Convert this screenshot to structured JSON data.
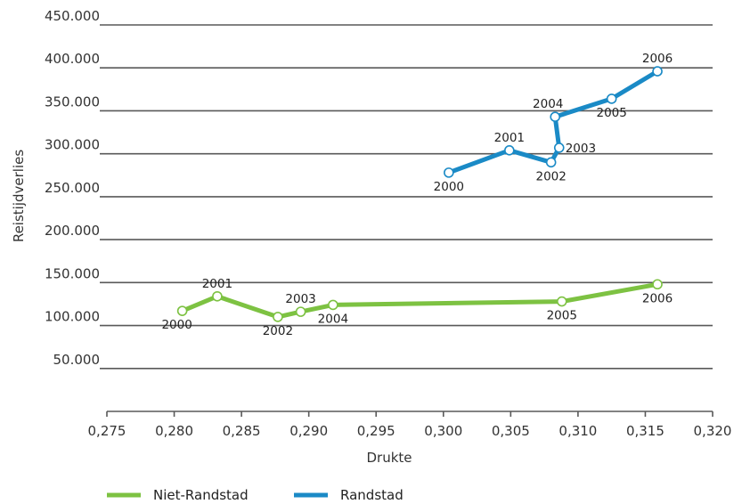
{
  "chart_data": {
    "type": "line",
    "xlabel": "Drukte",
    "ylabel": "Reistijdverlies",
    "xlim": [
      0.275,
      0.32
    ],
    "ylim": [
      0,
      450000
    ],
    "x_ticks": [
      "0,275",
      "0,280",
      "0,285",
      "0,290",
      "0,295",
      "0,300",
      "0,305",
      "0,310",
      "0,315",
      "0,320"
    ],
    "x_tick_values": [
      0.275,
      0.28,
      0.285,
      0.29,
      0.295,
      0.3,
      0.305,
      0.31,
      0.315,
      0.32
    ],
    "y_ticks": [
      "50.000",
      "100.000",
      "150.000",
      "200.000",
      "250.000",
      "300.000",
      "350.000",
      "400.000",
      "450.000"
    ],
    "y_tick_values": [
      50000,
      100000,
      150000,
      200000,
      250000,
      300000,
      350000,
      400000,
      450000
    ],
    "grid": "horizontal",
    "legend_position": "bottom-left",
    "series": [
      {
        "name": "Niet-Randstad",
        "color": "#7dc242",
        "points": [
          {
            "label": "2000",
            "x": 0.2806,
            "y": 117000,
            "label_pos": "below-left"
          },
          {
            "label": "2001",
            "x": 0.2832,
            "y": 134000,
            "label_pos": "above"
          },
          {
            "label": "2002",
            "x": 0.2877,
            "y": 110000,
            "label_pos": "below"
          },
          {
            "label": "2003",
            "x": 0.2894,
            "y": 116000,
            "label_pos": "above"
          },
          {
            "label": "2004",
            "x": 0.2918,
            "y": 124000,
            "label_pos": "below"
          },
          {
            "label": "2005",
            "x": 0.3088,
            "y": 128000,
            "label_pos": "below"
          },
          {
            "label": "2006",
            "x": 0.3159,
            "y": 148000,
            "label_pos": "below"
          }
        ]
      },
      {
        "name": "Randstad",
        "color": "#1a8ac6",
        "points": [
          {
            "label": "2000",
            "x": 0.3004,
            "y": 278000,
            "label_pos": "below"
          },
          {
            "label": "2001",
            "x": 0.3049,
            "y": 304000,
            "label_pos": "above"
          },
          {
            "label": "2002",
            "x": 0.308,
            "y": 290000,
            "label_pos": "below"
          },
          {
            "label": "2003",
            "x": 0.3086,
            "y": 307000,
            "label_pos": "right"
          },
          {
            "label": "2004",
            "x": 0.3083,
            "y": 343000,
            "label_pos": "above-left"
          },
          {
            "label": "2005",
            "x": 0.3125,
            "y": 364000,
            "label_pos": "below"
          },
          {
            "label": "2006",
            "x": 0.3159,
            "y": 396000,
            "label_pos": "above"
          }
        ]
      }
    ]
  }
}
